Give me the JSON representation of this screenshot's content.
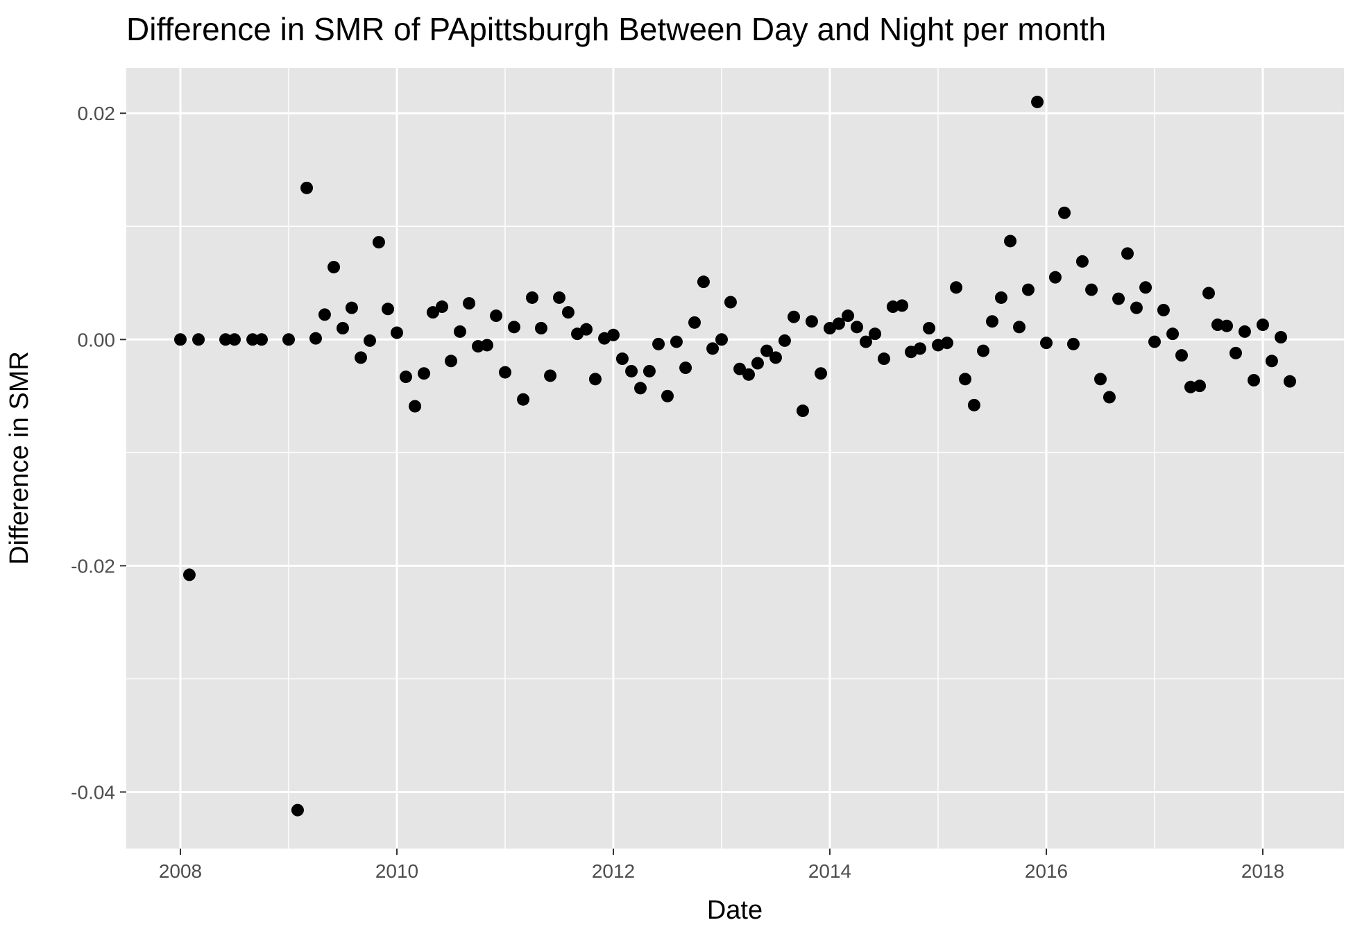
{
  "chart_data": {
    "type": "scatter",
    "title": "Difference in SMR of PApittsburgh Between Day and Night per month",
    "xlabel": "Date",
    "ylabel": "Difference in SMR",
    "xlim": [
      2007.5,
      2018.75
    ],
    "ylim": [
      -0.045,
      0.024
    ],
    "x_ticks": [
      2008,
      2010,
      2012,
      2014,
      2016,
      2018
    ],
    "x_tick_labels": [
      "2008",
      "2010",
      "2012",
      "2014",
      "2016",
      "2018"
    ],
    "y_ticks": [
      -0.04,
      -0.02,
      0.0,
      0.02
    ],
    "y_tick_labels": [
      "-0.04",
      "-0.02",
      "0.00",
      "0.02"
    ],
    "y_minor_ticks": [
      -0.03,
      -0.01,
      0.01
    ],
    "x_minor_ticks": [
      2009,
      2011,
      2013,
      2015,
      2017
    ],
    "grid": true,
    "panel_color": "#e5e5e5",
    "grid_color": "#ffffff",
    "point_color": "#000000",
    "points": [
      {
        "x": 2008.0,
        "y": 0.0
      },
      {
        "x": 2008.083,
        "y": -0.0208
      },
      {
        "x": 2008.167,
        "y": 0.0
      },
      {
        "x": 2008.417,
        "y": 0.0
      },
      {
        "x": 2008.5,
        "y": 0.0
      },
      {
        "x": 2008.667,
        "y": 0.0
      },
      {
        "x": 2008.75,
        "y": 0.0
      },
      {
        "x": 2009.0,
        "y": 0.0
      },
      {
        "x": 2009.083,
        "y": -0.0416
      },
      {
        "x": 2009.167,
        "y": 0.0134
      },
      {
        "x": 2009.25,
        "y": 0.0001
      },
      {
        "x": 2009.333,
        "y": 0.0022
      },
      {
        "x": 2009.417,
        "y": 0.0064
      },
      {
        "x": 2009.5,
        "y": 0.001
      },
      {
        "x": 2009.583,
        "y": 0.0028
      },
      {
        "x": 2009.667,
        "y": -0.0016
      },
      {
        "x": 2009.75,
        "y": -0.0001
      },
      {
        "x": 2009.833,
        "y": 0.0086
      },
      {
        "x": 2009.917,
        "y": 0.0027
      },
      {
        "x": 2010.0,
        "y": 0.0006
      },
      {
        "x": 2010.083,
        "y": -0.0033
      },
      {
        "x": 2010.167,
        "y": -0.0059
      },
      {
        "x": 2010.25,
        "y": -0.003
      },
      {
        "x": 2010.333,
        "y": 0.0024
      },
      {
        "x": 2010.417,
        "y": 0.0029
      },
      {
        "x": 2010.5,
        "y": -0.0019
      },
      {
        "x": 2010.583,
        "y": 0.0007
      },
      {
        "x": 2010.667,
        "y": 0.0032
      },
      {
        "x": 2010.75,
        "y": -0.0006
      },
      {
        "x": 2010.833,
        "y": -0.0005
      },
      {
        "x": 2010.917,
        "y": 0.0021
      },
      {
        "x": 2011.0,
        "y": -0.0029
      },
      {
        "x": 2011.083,
        "y": 0.0011
      },
      {
        "x": 2011.167,
        "y": -0.0053
      },
      {
        "x": 2011.25,
        "y": 0.0037
      },
      {
        "x": 2011.333,
        "y": 0.001
      },
      {
        "x": 2011.417,
        "y": -0.0032
      },
      {
        "x": 2011.5,
        "y": 0.0037
      },
      {
        "x": 2011.583,
        "y": 0.0024
      },
      {
        "x": 2011.667,
        "y": 0.0005
      },
      {
        "x": 2011.75,
        "y": 0.0009
      },
      {
        "x": 2011.833,
        "y": -0.0035
      },
      {
        "x": 2011.917,
        "y": 0.0001
      },
      {
        "x": 2012.0,
        "y": 0.0004
      },
      {
        "x": 2012.083,
        "y": -0.0017
      },
      {
        "x": 2012.167,
        "y": -0.0028
      },
      {
        "x": 2012.25,
        "y": -0.0043
      },
      {
        "x": 2012.333,
        "y": -0.0028
      },
      {
        "x": 2012.417,
        "y": -0.0004
      },
      {
        "x": 2012.5,
        "y": -0.005
      },
      {
        "x": 2012.583,
        "y": -0.0002
      },
      {
        "x": 2012.667,
        "y": -0.0025
      },
      {
        "x": 2012.75,
        "y": 0.0015
      },
      {
        "x": 2012.833,
        "y": 0.0051
      },
      {
        "x": 2012.917,
        "y": -0.0008
      },
      {
        "x": 2013.0,
        "y": 0.0
      },
      {
        "x": 2013.083,
        "y": 0.0033
      },
      {
        "x": 2013.167,
        "y": -0.0026
      },
      {
        "x": 2013.25,
        "y": -0.0031
      },
      {
        "x": 2013.333,
        "y": -0.0021
      },
      {
        "x": 2013.417,
        "y": -0.001
      },
      {
        "x": 2013.5,
        "y": -0.0016
      },
      {
        "x": 2013.583,
        "y": -0.0001
      },
      {
        "x": 2013.667,
        "y": 0.002
      },
      {
        "x": 2013.75,
        "y": -0.0063
      },
      {
        "x": 2013.833,
        "y": 0.0016
      },
      {
        "x": 2013.917,
        "y": -0.003
      },
      {
        "x": 2014.0,
        "y": 0.001
      },
      {
        "x": 2014.083,
        "y": 0.0014
      },
      {
        "x": 2014.167,
        "y": 0.0021
      },
      {
        "x": 2014.25,
        "y": 0.0011
      },
      {
        "x": 2014.333,
        "y": -0.0002
      },
      {
        "x": 2014.417,
        "y": 0.0005
      },
      {
        "x": 2014.5,
        "y": -0.0017
      },
      {
        "x": 2014.583,
        "y": 0.0029
      },
      {
        "x": 2014.667,
        "y": 0.003
      },
      {
        "x": 2014.75,
        "y": -0.0011
      },
      {
        "x": 2014.833,
        "y": -0.0008
      },
      {
        "x": 2014.917,
        "y": 0.001
      },
      {
        "x": 2015.0,
        "y": -0.0005
      },
      {
        "x": 2015.083,
        "y": -0.0003
      },
      {
        "x": 2015.167,
        "y": 0.0046
      },
      {
        "x": 2015.25,
        "y": -0.0035
      },
      {
        "x": 2015.333,
        "y": -0.0058
      },
      {
        "x": 2015.417,
        "y": -0.001
      },
      {
        "x": 2015.5,
        "y": 0.0016
      },
      {
        "x": 2015.583,
        "y": 0.0037
      },
      {
        "x": 2015.667,
        "y": 0.0087
      },
      {
        "x": 2015.75,
        "y": 0.0011
      },
      {
        "x": 2015.833,
        "y": 0.0044
      },
      {
        "x": 2015.917,
        "y": 0.021
      },
      {
        "x": 2016.0,
        "y": -0.0003
      },
      {
        "x": 2016.083,
        "y": 0.0055
      },
      {
        "x": 2016.167,
        "y": 0.0112
      },
      {
        "x": 2016.25,
        "y": -0.0004
      },
      {
        "x": 2016.333,
        "y": 0.0069
      },
      {
        "x": 2016.417,
        "y": 0.0044
      },
      {
        "x": 2016.5,
        "y": -0.0035
      },
      {
        "x": 2016.583,
        "y": -0.0051
      },
      {
        "x": 2016.667,
        "y": 0.0036
      },
      {
        "x": 2016.75,
        "y": 0.0076
      },
      {
        "x": 2016.833,
        "y": 0.0028
      },
      {
        "x": 2016.917,
        "y": 0.0046
      },
      {
        "x": 2017.0,
        "y": -0.0002
      },
      {
        "x": 2017.083,
        "y": 0.0026
      },
      {
        "x": 2017.167,
        "y": 0.0005
      },
      {
        "x": 2017.25,
        "y": -0.0014
      },
      {
        "x": 2017.333,
        "y": -0.0042
      },
      {
        "x": 2017.417,
        "y": -0.0041
      },
      {
        "x": 2017.5,
        "y": 0.0041
      },
      {
        "x": 2017.583,
        "y": 0.0013
      },
      {
        "x": 2017.667,
        "y": 0.0012
      },
      {
        "x": 2017.75,
        "y": -0.0012
      },
      {
        "x": 2017.833,
        "y": 0.0007
      },
      {
        "x": 2017.917,
        "y": -0.0036
      },
      {
        "x": 2018.0,
        "y": 0.0013
      },
      {
        "x": 2018.083,
        "y": -0.0019
      },
      {
        "x": 2018.167,
        "y": 0.0002
      },
      {
        "x": 2018.25,
        "y": -0.0037
      }
    ]
  }
}
